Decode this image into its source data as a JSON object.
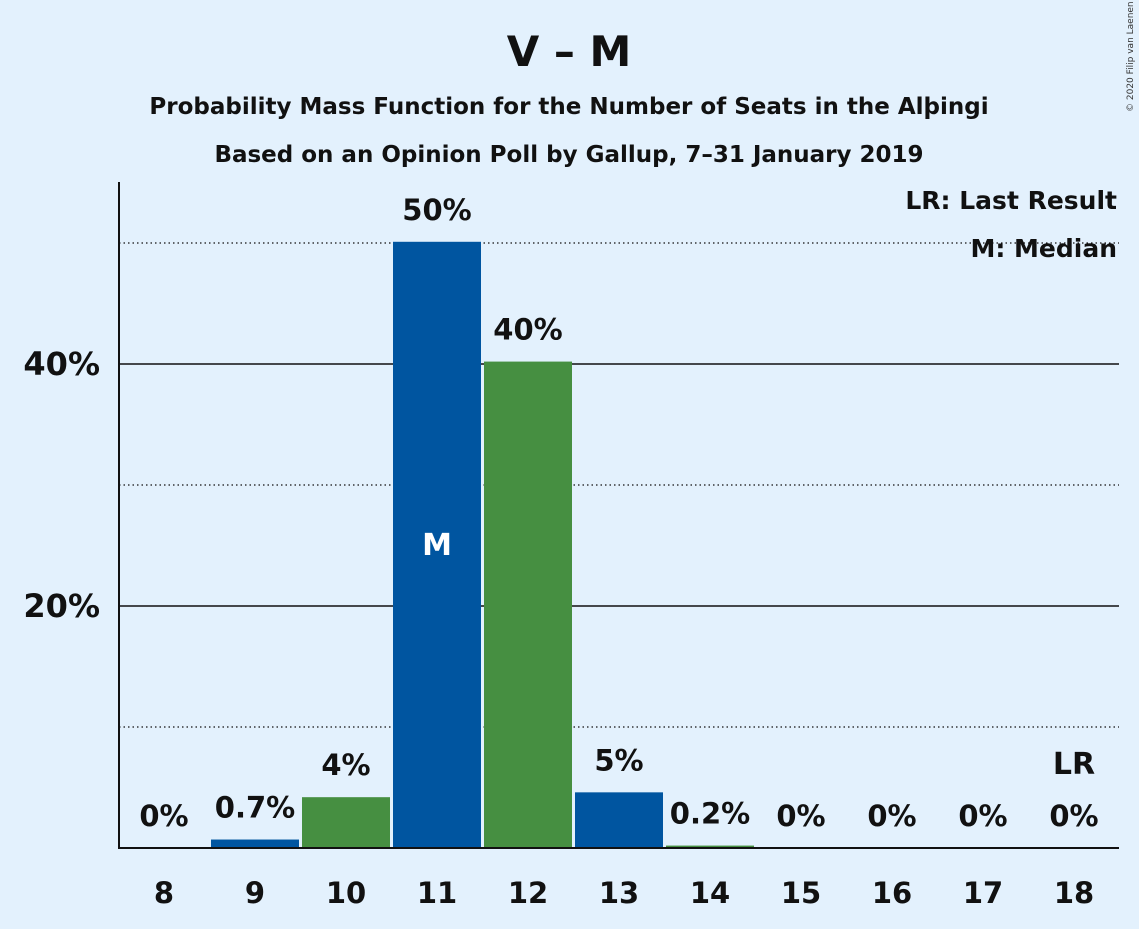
{
  "colors": {
    "background": "#e3f1fd",
    "blue": "#0055a0",
    "green": "#468f41",
    "text": "#111111"
  },
  "copyright": "© 2020 Filip van Laenen",
  "chart_data": {
    "type": "bar",
    "title": "V – M",
    "subtitle": "Probability Mass Function for the Number of Seats in the Alþingi",
    "subtitle2": "Based on an Opinion Poll by Gallup, 7–31 January 2019",
    "categories": [
      "8",
      "9",
      "10",
      "11",
      "12",
      "13",
      "14",
      "15",
      "16",
      "17",
      "18"
    ],
    "values": [
      0,
      0.7,
      4.2,
      50.1,
      40.2,
      4.6,
      0.2,
      0,
      0,
      0,
      0
    ],
    "labels": [
      "0%",
      "0.7%",
      "4%",
      "50%",
      "40%",
      "5%",
      "0.2%",
      "0%",
      "0%",
      "0%",
      "0%"
    ],
    "bar_colors": [
      "blue",
      "blue",
      "green",
      "blue",
      "green",
      "blue",
      "green",
      "blue",
      "green",
      "blue",
      "green"
    ],
    "ylim": [
      0,
      55
    ],
    "yticks": [
      {
        "value": 20,
        "label": "20%"
      },
      {
        "value": 40,
        "label": "40%"
      }
    ],
    "minor_gridlines": [
      10,
      30,
      50
    ],
    "median": {
      "category": "11",
      "marker": "M"
    },
    "last_result": {
      "category": "18",
      "marker": "LR"
    },
    "legend": {
      "position": "top-right",
      "lines": [
        "LR: Last Result",
        "M: Median"
      ]
    },
    "xlabel": "",
    "ylabel": ""
  }
}
